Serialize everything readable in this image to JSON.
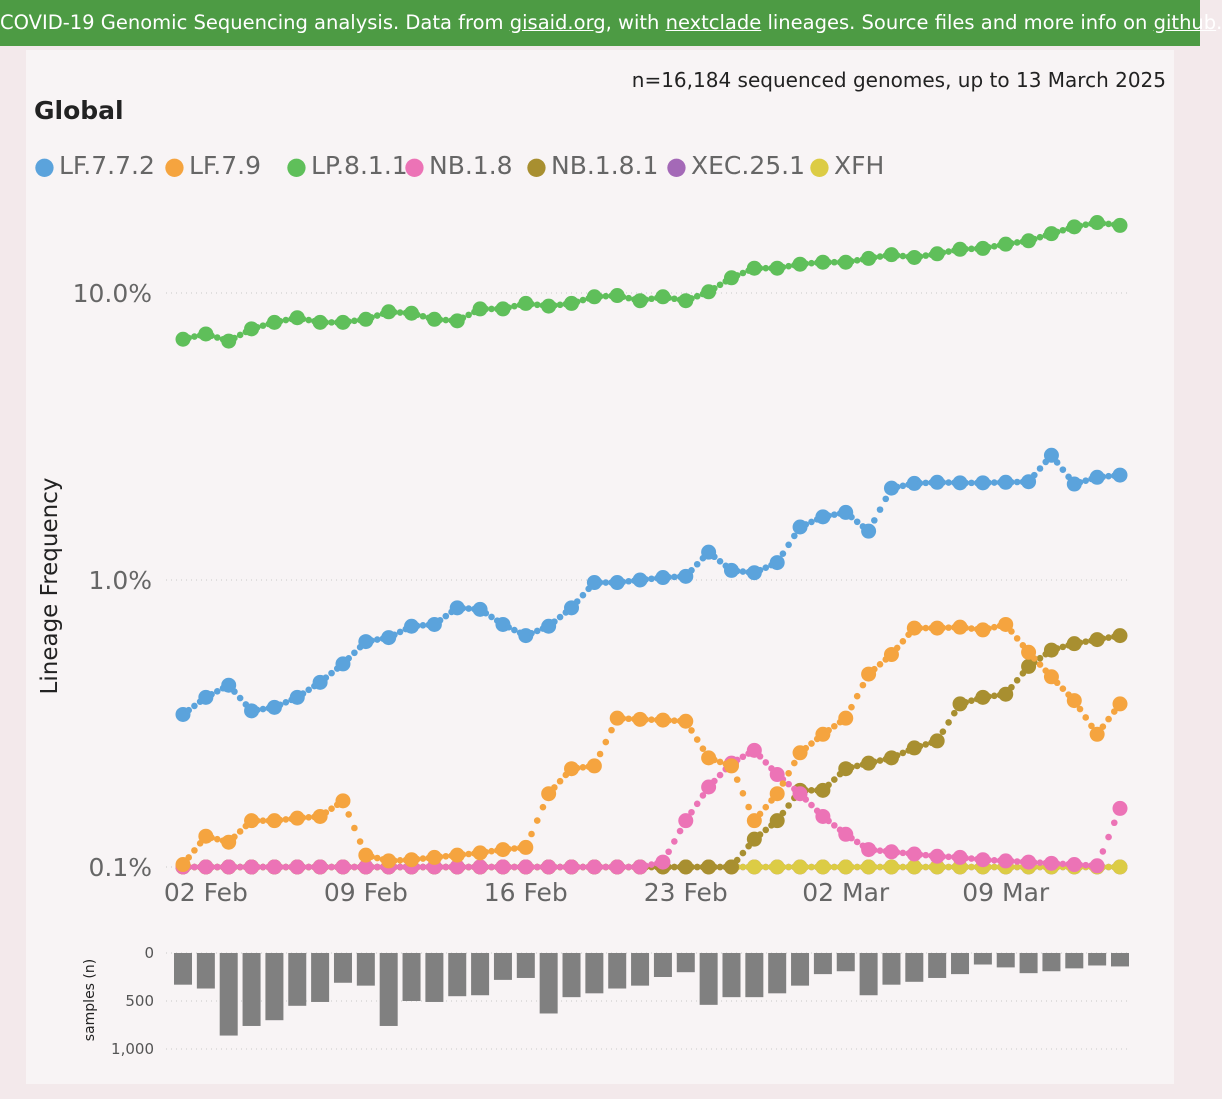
{
  "banner": {
    "text_1": "COVID-19 Genomic Sequencing analysis. Data from ",
    "link_gisaid": "gisaid.org",
    "text_2": ", with ",
    "link_nextclade": "nextclade",
    "text_3": " lineages. Source files and more info on ",
    "link_github": "github",
    "text_4": ".",
    "bg_color": "#4d9b44"
  },
  "header": {
    "summary": "n=16,184 sequenced genomes, up to 13 March 2025",
    "region": "Global"
  },
  "legend": {
    "marker": "●"
  },
  "bars_ylabel": "samples (n)",
  "chart_data": [
    {
      "type": "line",
      "title": "Global",
      "ylabel": "Lineage Frequency",
      "yscale": "log",
      "ylim_percent": [
        0.1,
        20
      ],
      "y_ticks": [
        0.1,
        1.0,
        10.0
      ],
      "y_tick_labels": [
        "0.1%",
        "1.0%",
        "10.0%"
      ],
      "x_ticks": [
        "02 Feb",
        "09 Feb",
        "16 Feb",
        "23 Feb",
        "02 Mar",
        "09 Mar"
      ],
      "x_day_start": "01 Feb 2025",
      "x_day_end": "13 Mar 2025",
      "grid": "horizontal dotted",
      "legend_position": "top",
      "series": [
        {
          "name": "LF.7.7.2",
          "color": "#5ba3dc",
          "values": [
            0.34,
            0.39,
            0.43,
            0.35,
            0.36,
            0.39,
            0.44,
            0.51,
            0.61,
            0.63,
            0.69,
            0.7,
            0.8,
            0.79,
            0.7,
            0.64,
            0.69,
            0.8,
            0.98,
            0.98,
            1.0,
            1.02,
            1.03,
            1.25,
            1.08,
            1.06,
            1.15,
            1.53,
            1.66,
            1.72,
            1.48,
            2.09,
            2.17,
            2.19,
            2.18,
            2.18,
            2.19,
            2.2,
            2.72,
            2.16,
            2.28,
            2.32
          ]
        },
        {
          "name": "LF.7.9",
          "color": "#f5a43f",
          "values": [
            0.102,
            0.128,
            0.122,
            0.145,
            0.145,
            0.148,
            0.15,
            0.17,
            0.11,
            0.105,
            0.106,
            0.108,
            0.11,
            0.112,
            0.115,
            0.117,
            0.18,
            0.22,
            0.225,
            0.33,
            0.327,
            0.325,
            0.322,
            0.24,
            0.225,
            0.145,
            0.18,
            0.25,
            0.29,
            0.33,
            0.47,
            0.55,
            0.68,
            0.68,
            0.685,
            0.67,
            0.7,
            0.56,
            0.46,
            0.38,
            0.29,
            0.37
          ]
        },
        {
          "name": "LP.8.1.1",
          "color": "#5fbf5a",
          "values": [
            6.9,
            7.2,
            6.8,
            7.5,
            7.9,
            8.2,
            7.9,
            7.9,
            8.1,
            8.6,
            8.5,
            8.1,
            8.0,
            8.8,
            8.8,
            9.2,
            9.0,
            9.2,
            9.7,
            9.8,
            9.4,
            9.7,
            9.4,
            10.1,
            11.3,
            12.2,
            12.2,
            12.6,
            12.8,
            12.8,
            13.2,
            13.6,
            13.3,
            13.7,
            14.2,
            14.3,
            14.8,
            15.2,
            16.1,
            17.0,
            17.6,
            17.2
          ]
        },
        {
          "name": "NB.1.8",
          "color": "#ec73b6",
          "values": [
            0.1,
            0.1,
            0.1,
            0.1,
            0.1,
            0.1,
            0.1,
            0.1,
            0.1,
            0.1,
            0.1,
            0.1,
            0.1,
            0.1,
            0.1,
            0.1,
            0.1,
            0.1,
            0.1,
            0.1,
            0.1,
            0.104,
            0.145,
            0.19,
            0.23,
            0.255,
            0.21,
            0.18,
            0.15,
            0.13,
            0.115,
            0.113,
            0.111,
            0.109,
            0.108,
            0.106,
            0.105,
            0.104,
            0.103,
            0.102,
            0.101,
            0.16
          ]
        },
        {
          "name": "NB.1.8.1",
          "color": "#a88f30",
          "values": [
            0.1,
            0.1,
            0.1,
            0.1,
            0.1,
            0.1,
            0.1,
            0.1,
            0.1,
            0.1,
            0.1,
            0.1,
            0.1,
            0.1,
            0.1,
            0.1,
            0.1,
            0.1,
            0.1,
            0.1,
            0.1,
            0.1,
            0.1,
            0.1,
            0.1,
            0.125,
            0.145,
            0.185,
            0.185,
            0.22,
            0.23,
            0.24,
            0.26,
            0.275,
            0.37,
            0.39,
            0.4,
            0.5,
            0.57,
            0.6,
            0.62,
            0.64
          ]
        },
        {
          "name": "XEC.25.1",
          "color": "#a469b7",
          "values": [
            0.1,
            0.1,
            0.1,
            0.1,
            0.1,
            0.1,
            0.1,
            0.1,
            0.1,
            0.1,
            0.1,
            0.1,
            0.1,
            0.1,
            0.1,
            0.1,
            0.1,
            0.1,
            0.1,
            0.1,
            0.1,
            0.1,
            0.1,
            0.1,
            0.1,
            0.1,
            0.1,
            0.1,
            0.1,
            0.1,
            0.1,
            0.1,
            0.1,
            0.1,
            0.1,
            0.1,
            0.1,
            0.1,
            0.1,
            0.1,
            0.1,
            0.1
          ]
        },
        {
          "name": "XFH",
          "color": "#dccc45",
          "values": [
            0.1,
            0.1,
            0.1,
            0.1,
            0.1,
            0.1,
            0.1,
            0.1,
            0.1,
            0.1,
            0.1,
            0.1,
            0.1,
            0.1,
            0.1,
            0.1,
            0.1,
            0.1,
            0.1,
            0.1,
            0.1,
            0.1,
            0.1,
            0.1,
            0.1,
            0.1,
            0.1,
            0.1,
            0.1,
            0.1,
            0.1,
            0.1,
            0.1,
            0.1,
            0.1,
            0.1,
            0.1,
            0.1,
            0.1,
            0.1,
            0.1,
            0.1
          ]
        }
      ]
    },
    {
      "type": "bar",
      "ylabel": "samples (n)",
      "yscale": "linear, inverted",
      "ylim": [
        0,
        1000
      ],
      "y_ticks": [
        0,
        500,
        1000
      ],
      "y_tick_labels": [
        "0",
        "500",
        "1,000"
      ],
      "color": "#808080",
      "values": [
        330,
        370,
        860,
        760,
        700,
        550,
        510,
        310,
        340,
        760,
        500,
        510,
        450,
        440,
        280,
        260,
        630,
        460,
        420,
        370,
        340,
        250,
        200,
        540,
        460,
        460,
        420,
        340,
        220,
        190,
        440,
        330,
        300,
        260,
        220,
        120,
        150,
        210,
        190,
        160,
        130,
        140
      ]
    }
  ]
}
